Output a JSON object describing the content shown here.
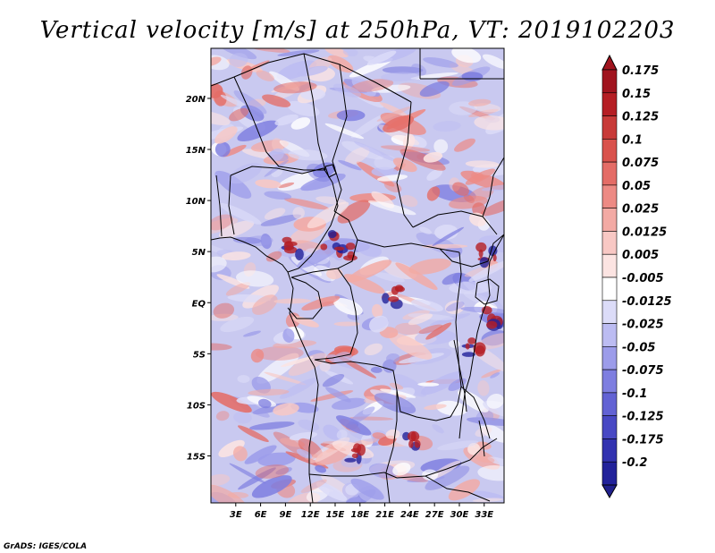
{
  "title": "Vertical velocity [m/s] at 250hPa, VT: 2019102203",
  "credit": "GrADS: IGES/COLA",
  "map": {
    "lon_min": 0,
    "lon_max": 35.4,
    "lat_min": -19.6,
    "lat_max": 24.9,
    "x_ticks": [
      {
        "lon": 3,
        "label": "3E"
      },
      {
        "lon": 6,
        "label": "6E"
      },
      {
        "lon": 9,
        "label": "9E"
      },
      {
        "lon": 12,
        "label": "12E"
      },
      {
        "lon": 15,
        "label": "15E"
      },
      {
        "lon": 18,
        "label": "18E"
      },
      {
        "lon": 21,
        "label": "21E"
      },
      {
        "lon": 24,
        "label": "24E"
      },
      {
        "lon": 27,
        "label": "27E"
      },
      {
        "lon": 30,
        "label": "30E"
      },
      {
        "lon": 33,
        "label": "33E"
      }
    ],
    "y_ticks": [
      {
        "lat": 20,
        "label": "20N"
      },
      {
        "lat": 15,
        "label": "15N"
      },
      {
        "lat": 10,
        "label": "10N"
      },
      {
        "lat": 5,
        "label": "5N"
      },
      {
        "lat": 0,
        "label": "EQ"
      },
      {
        "lat": -5,
        "label": "5S"
      },
      {
        "lat": -10,
        "label": "10S"
      },
      {
        "lat": -15,
        "label": "15S"
      }
    ]
  },
  "colorbar": {
    "levels": [
      {
        "label": "0.175",
        "color": "#a0141e"
      },
      {
        "label": "0.15",
        "color": "#b51e24"
      },
      {
        "label": "0.125",
        "color": "#c83a38"
      },
      {
        "label": "0.1",
        "color": "#d9524c"
      },
      {
        "label": "0.075",
        "color": "#e46c66"
      },
      {
        "label": "0.05",
        "color": "#ed8a84"
      },
      {
        "label": "0.025",
        "color": "#f3aaa4"
      },
      {
        "label": "0.0125",
        "color": "#f8c8c4"
      },
      {
        "label": "0.005",
        "color": "#fce4e2"
      },
      {
        "label": "-0.005",
        "color": "#ffffff"
      },
      {
        "label": "-0.0125",
        "color": "#dcdcf8"
      },
      {
        "label": "-0.025",
        "color": "#bcbcf2"
      },
      {
        "label": "-0.05",
        "color": "#9c9cea"
      },
      {
        "label": "-0.075",
        "color": "#7e7ee0"
      },
      {
        "label": "-0.1",
        "color": "#6262d4"
      },
      {
        "label": "-0.125",
        "color": "#4848c4"
      },
      {
        "label": "-0.175",
        "color": "#3232b0"
      },
      {
        "label": "-0.2",
        "color": "#22229a"
      }
    ],
    "top_color": "#a0141e",
    "bottom_color": "#20208c"
  },
  "colors": {
    "field_base": "#c9c9f0",
    "positive_mid": "#ef9a92",
    "positive_strong": "#c4302c",
    "negative_mid": "#8a8ae4",
    "border": "#000000"
  }
}
